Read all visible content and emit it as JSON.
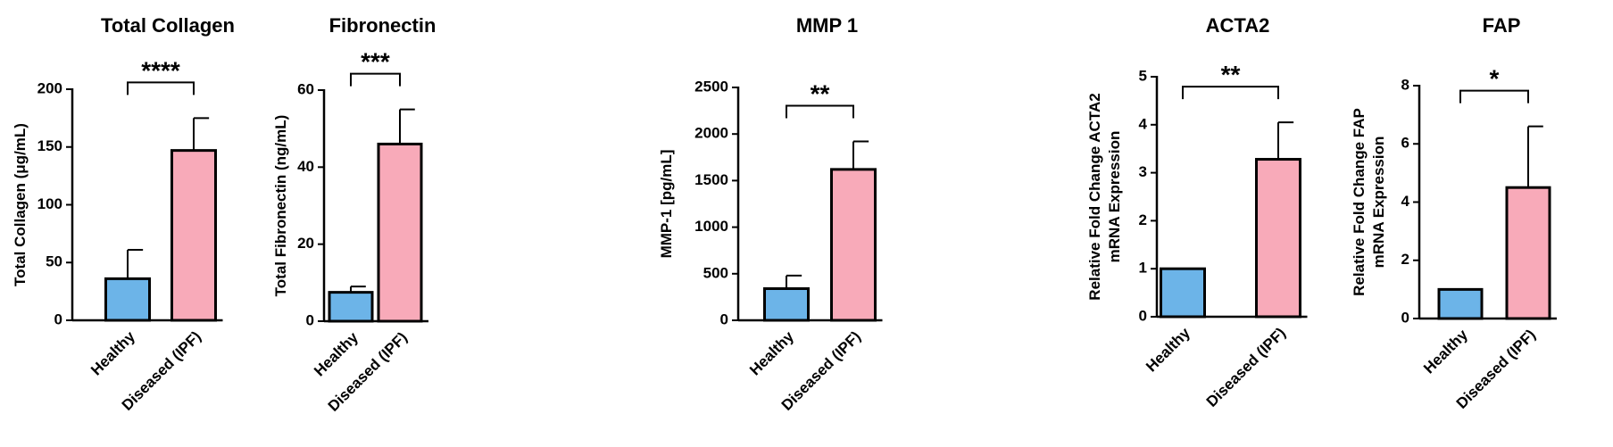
{
  "chart_data": [
    {
      "type": "bar",
      "title": "Total Collagen",
      "ylabel": [
        "Total Collagen (μg/mL)"
      ],
      "categories": [
        "Healthy",
        "Diseased (IPF)"
      ],
      "values": [
        36,
        147
      ],
      "errors": [
        25,
        28
      ],
      "colors": [
        "#6cb4e8",
        "#f8aab9"
      ],
      "ylim": [
        0,
        200
      ],
      "yticks": [
        0,
        50,
        100,
        150,
        200
      ],
      "significance": "****"
    },
    {
      "type": "bar",
      "title": "Fibronectin",
      "ylabel": [
        "Total Fibronectin (ng/mL)"
      ],
      "categories": [
        "Healthy",
        "Diseased (IPF)"
      ],
      "values": [
        7.5,
        46
      ],
      "errors": [
        1.5,
        9
      ],
      "colors": [
        "#6cb4e8",
        "#f8aab9"
      ],
      "ylim": [
        0,
        60
      ],
      "yticks": [
        0,
        20,
        40,
        60
      ],
      "significance": "***"
    },
    {
      "type": "bar",
      "title": "MMP 1",
      "ylabel": [
        "MMP-1 [pg/mL]"
      ],
      "categories": [
        "Healthy",
        "Diseased (IPF)"
      ],
      "values": [
        340,
        1620
      ],
      "errors": [
        140,
        300
      ],
      "colors": [
        "#6cb4e8",
        "#f8aab9"
      ],
      "ylim": [
        0,
        2500
      ],
      "yticks": [
        0,
        500,
        1000,
        1500,
        2000,
        2500
      ],
      "significance": "**"
    },
    {
      "type": "bar",
      "title": "ACTA2",
      "ylabel": [
        "Relative Fold Change ACTA2",
        "mRNA Expression"
      ],
      "categories": [
        "Healthy",
        "Diseased (IPF)"
      ],
      "values": [
        1,
        3.28
      ],
      "errors": [
        0,
        0.77
      ],
      "colors": [
        "#6cb4e8",
        "#f8aab9"
      ],
      "ylim": [
        0,
        5
      ],
      "yticks": [
        0,
        1,
        2,
        3,
        4,
        5
      ],
      "significance": "**"
    },
    {
      "type": "bar",
      "title": "FAP",
      "ylabel": [
        "Relative Fold Change FAP",
        "mRNA Expression"
      ],
      "categories": [
        "Healthy",
        "Diseased (IPF)"
      ],
      "values": [
        1,
        4.5
      ],
      "errors": [
        0,
        2.1
      ],
      "colors": [
        "#6cb4e8",
        "#f8aab9"
      ],
      "ylim": [
        0,
        8
      ],
      "yticks": [
        0,
        2,
        4,
        6,
        8
      ],
      "significance": "*"
    }
  ]
}
